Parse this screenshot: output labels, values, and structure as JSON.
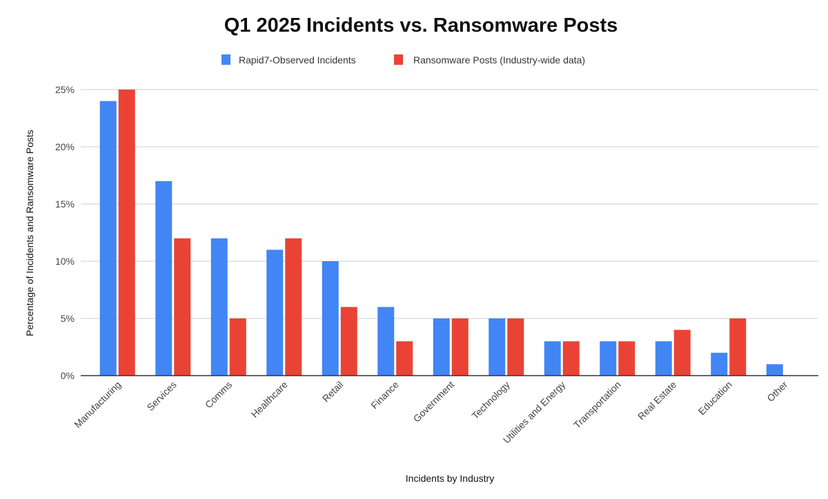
{
  "chart_data": {
    "type": "bar",
    "title": "Q1 2025 Incidents vs. Ransomware Posts",
    "xlabel": "Incidents by Industry",
    "ylabel": "Percentage of Incidents and Ransomware Posts",
    "ylim": [
      0,
      25
    ],
    "yticks": [
      "0%",
      "5%",
      "10%",
      "15%",
      "20%",
      "25%"
    ],
    "grid": true,
    "legend_position": "top",
    "categories": [
      "Manufacturing",
      "Services",
      "Comms",
      "Healthcare",
      "Retail",
      "Finance",
      "Government",
      "Technology",
      "Utilities and Energy",
      "Transportation",
      "Real Estate",
      "Education",
      "Other"
    ],
    "series": [
      {
        "name": "Rapid7-Observed Incidents",
        "color": "#4285f4",
        "values": [
          24,
          17,
          12,
          11,
          10,
          6,
          5,
          5,
          3,
          3,
          3,
          2,
          1
        ]
      },
      {
        "name": "Ransomware Posts (Industry-wide data)",
        "color": "#ea4335",
        "values": [
          25,
          12,
          5,
          12,
          6,
          3,
          5,
          5,
          3,
          3,
          4,
          5,
          0
        ]
      }
    ]
  }
}
